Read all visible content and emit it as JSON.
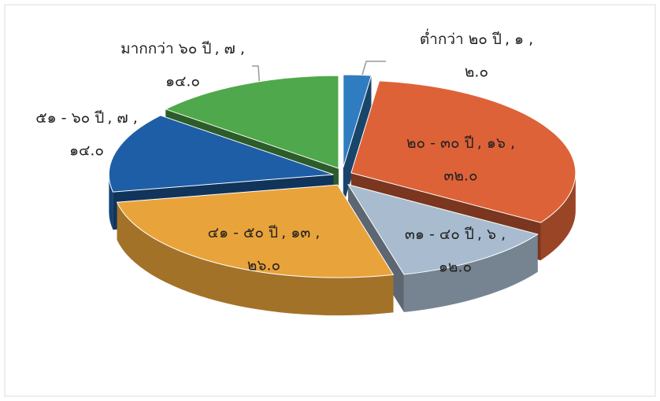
{
  "chart_data": {
    "type": "pie3d",
    "categories": [
      "ต่ำกว่า ๒๐ ปี",
      "๒๐ - ๓๐ ปี",
      "๓๑ - ๔๐ ปี",
      "๔๑ - ๕๐ ปี",
      "๕๑ - ๖๐ ปี",
      "มากกว่า ๖๐ ปี"
    ],
    "values": [
      1,
      16,
      6,
      13,
      7,
      7
    ],
    "value_labels": [
      ", ๑ ,",
      ", ๑๖ ,",
      ", ๖ ,",
      ", ๑๓ ,",
      ", ๗ ,",
      ", ๗ ,"
    ],
    "percent": [
      2.0,
      32.0,
      12.0,
      26.0,
      14.0,
      14.0
    ],
    "percent_labels": [
      "๒.๐",
      "๓๒.๐",
      "๑๒.๐",
      "๒๖.๐",
      "๑๔.๐",
      "๑๔.๐"
    ],
    "colors": [
      "#2f7dc0",
      "#de6238",
      "#a9bccf",
      "#e9a33b",
      "#1e5ea6",
      "#4fa84b"
    ]
  }
}
